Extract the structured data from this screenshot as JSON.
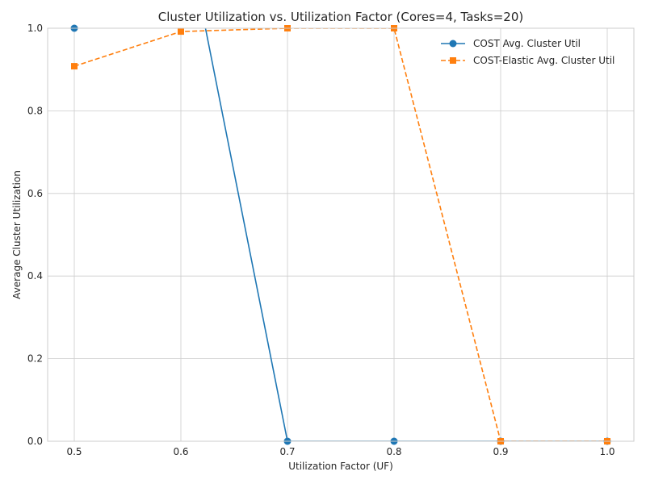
{
  "chart_data": {
    "type": "line",
    "title": "Cluster Utilization vs. Utilization Factor (Cores=4, Tasks=20)",
    "xlabel": "Utilization Factor (UF)",
    "ylabel": "Average Cluster Utilization",
    "x": [
      0.5,
      0.6,
      0.7,
      0.8,
      0.9,
      1.0
    ],
    "xlim": [
      0.475,
      1.025
    ],
    "ylim": [
      0,
      1.0
    ],
    "xticks": [
      "0.5",
      "0.6",
      "0.7",
      "0.8",
      "0.9",
      "1.0"
    ],
    "yticks": [
      "0.0",
      "0.2",
      "0.4",
      "0.6",
      "0.8",
      "1.0"
    ],
    "grid": true,
    "legend_position": "top-right",
    "series": [
      {
        "name": "COST Avg. Cluster Util",
        "color": "#1f77b4",
        "marker": "circle",
        "linestyle": "solid",
        "values": [
          1.0,
          1.3,
          0.0,
          0.0,
          0.0,
          0.0
        ]
      },
      {
        "name": "COST-Elastic Avg. Cluster Util",
        "color": "#ff7f0e",
        "marker": "square",
        "linestyle": "dashed",
        "values": [
          0.908,
          0.992,
          1.0,
          1.0,
          0.0,
          0.0
        ]
      }
    ]
  }
}
